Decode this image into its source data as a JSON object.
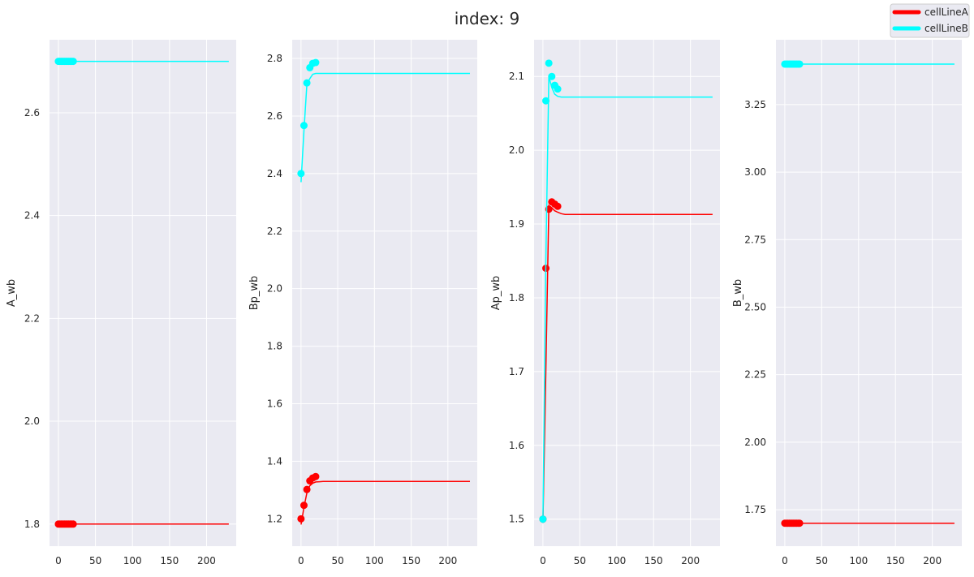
{
  "figure": {
    "title": "index: 9",
    "legend": [
      {
        "name": "cellLineA",
        "color": "#ff0000"
      },
      {
        "name": "cellLineB",
        "color": "#00ffff"
      }
    ],
    "legend_position": "top-right"
  },
  "chart_data": [
    {
      "type": "line",
      "ylabel": "A_wb",
      "xlim": [
        -12,
        240
      ],
      "ylim": [
        1.757,
        2.742
      ],
      "xticks": [
        0,
        50,
        100,
        150,
        200
      ],
      "yticks": [
        1.8,
        2.0,
        2.2,
        2.4,
        2.6
      ],
      "ytick_labels": [
        "1.8",
        "2.0",
        "2.2",
        "2.4",
        "2.6"
      ],
      "grid": true,
      "series": [
        {
          "name": "cellLineA",
          "color": "#ff0000",
          "line": {
            "x": [
              0,
              5,
              10,
              15,
              20,
              30,
              50,
              100,
              150,
              200,
              230
            ],
            "y": [
              1.8,
              1.8,
              1.8,
              1.8,
              1.8,
              1.8,
              1.8,
              1.8,
              1.8,
              1.8,
              1.8
            ]
          },
          "points": {
            "x": [
              0,
              2,
              4,
              6,
              8,
              10,
              12,
              14,
              16,
              18,
              20
            ],
            "y": [
              1.8,
              1.8,
              1.8,
              1.8,
              1.8,
              1.8,
              1.8,
              1.8,
              1.8,
              1.8,
              1.8
            ]
          }
        },
        {
          "name": "cellLineB",
          "color": "#00ffff",
          "line": {
            "x": [
              0,
              5,
              10,
              15,
              20,
              30,
              50,
              100,
              150,
              200,
              230
            ],
            "y": [
              2.7,
              2.7,
              2.7,
              2.7,
              2.7,
              2.7,
              2.7,
              2.7,
              2.7,
              2.7,
              2.7
            ]
          },
          "points": {
            "x": [
              0,
              2,
              4,
              6,
              8,
              10,
              12,
              14,
              16,
              18,
              20
            ],
            "y": [
              2.7,
              2.7,
              2.7,
              2.7,
              2.7,
              2.7,
              2.7,
              2.7,
              2.7,
              2.7,
              2.7
            ]
          }
        }
      ]
    },
    {
      "type": "line",
      "ylabel": "Bp_wb",
      "xlim": [
        -12,
        240
      ],
      "ylim": [
        1.105,
        2.865
      ],
      "xticks": [
        0,
        50,
        100,
        150,
        200
      ],
      "yticks": [
        1.2,
        1.4,
        1.6,
        1.8,
        2.0,
        2.2,
        2.4,
        2.6,
        2.8
      ],
      "ytick_labels": [
        "1.2",
        "1.4",
        "1.6",
        "1.8",
        "2.0",
        "2.2",
        "2.4",
        "2.6",
        "2.8"
      ],
      "grid": true,
      "series": [
        {
          "name": "cellLineA",
          "color": "#ff0000",
          "line": {
            "x": [
              0,
              4,
              8,
              12,
              16,
              20,
              25,
              30,
              50,
              100,
              150,
              200,
              230
            ],
            "y": [
              1.18,
              1.24,
              1.29,
              1.315,
              1.324,
              1.328,
              1.329,
              1.33,
              1.33,
              1.33,
              1.33,
              1.33,
              1.33
            ]
          },
          "points": {
            "x": [
              0,
              4,
              8,
              12,
              16,
              20
            ],
            "y": [
              1.2,
              1.247,
              1.302,
              1.332,
              1.342,
              1.347
            ]
          }
        },
        {
          "name": "cellLineB",
          "color": "#00ffff",
          "line": {
            "x": [
              0,
              4,
              8,
              12,
              16,
              20,
              25,
              30,
              50,
              100,
              150,
              200,
              230
            ],
            "y": [
              2.37,
              2.55,
              2.71,
              2.73,
              2.745,
              2.748,
              2.748,
              2.748,
              2.748,
              2.748,
              2.748,
              2.748,
              2.748
            ]
          },
          "points": {
            "x": [
              0,
              4,
              8,
              12,
              16,
              20
            ],
            "y": [
              2.4,
              2.567,
              2.715,
              2.768,
              2.783,
              2.786
            ]
          }
        }
      ]
    },
    {
      "type": "line",
      "ylabel": "Ap_wb",
      "xlim": [
        -12,
        240
      ],
      "ylim": [
        1.4634,
        2.1497
      ],
      "xticks": [
        0,
        50,
        100,
        150,
        200
      ],
      "yticks": [
        1.5,
        1.6,
        1.7,
        1.8,
        1.9,
        2.0,
        2.1
      ],
      "ytick_labels": [
        "1.5",
        "1.6",
        "1.7",
        "1.8",
        "1.9",
        "2.0",
        "2.1"
      ],
      "grid": true,
      "series": [
        {
          "name": "cellLineA",
          "color": "#ff0000",
          "line": {
            "x": [
              0,
              4,
              8,
              12,
              16,
              20,
              25,
              30,
              40,
              50,
              100,
              150,
              200,
              230
            ],
            "y": [
              1.495,
              1.7,
              1.925,
              1.922,
              1.918,
              1.916,
              1.914,
              1.913,
              1.913,
              1.913,
              1.913,
              1.913,
              1.913,
              1.913
            ]
          },
          "points": {
            "x": [
              0,
              4,
              8,
              12,
              16,
              20
            ],
            "y": [
              1.5,
              1.84,
              1.92,
              1.93,
              1.927,
              1.924
            ]
          }
        },
        {
          "name": "cellLineB",
          "color": "#00ffff",
          "line": {
            "x": [
              0,
              4,
              8,
              12,
              16,
              20,
              25,
              30,
              40,
              50,
              100,
              150,
              200,
              230
            ],
            "y": [
              1.495,
              1.85,
              2.1,
              2.085,
              2.076,
              2.073,
              2.072,
              2.072,
              2.072,
              2.072,
              2.072,
              2.072,
              2.072,
              2.072
            ]
          },
          "points": {
            "x": [
              0,
              4,
              8,
              12,
              16,
              20
            ],
            "y": [
              1.5,
              2.067,
              2.118,
              2.1,
              2.088,
              2.083
            ]
          }
        }
      ]
    },
    {
      "type": "line",
      "ylabel": "B_wb",
      "xlim": [
        -12,
        240
      ],
      "ylim": [
        1.615,
        3.49
      ],
      "xticks": [
        0,
        50,
        100,
        150,
        200
      ],
      "yticks": [
        1.75,
        2.0,
        2.25,
        2.5,
        2.75,
        3.0,
        3.25
      ],
      "ytick_labels": [
        "1.75",
        "2.00",
        "2.25",
        "2.50",
        "2.75",
        "3.00",
        "3.25"
      ],
      "grid": true,
      "series": [
        {
          "name": "cellLineA",
          "color": "#ff0000",
          "line": {
            "x": [
              0,
              5,
              10,
              15,
              20,
              30,
              50,
              100,
              150,
              200,
              230
            ],
            "y": [
              1.7,
              1.7,
              1.7,
              1.7,
              1.7,
              1.7,
              1.7,
              1.7,
              1.7,
              1.7,
              1.7
            ]
          },
          "points": {
            "x": [
              0,
              2,
              4,
              6,
              8,
              10,
              12,
              14,
              16,
              18,
              20
            ],
            "y": [
              1.7,
              1.7,
              1.7,
              1.7,
              1.7,
              1.7,
              1.7,
              1.7,
              1.7,
              1.7,
              1.7
            ]
          }
        },
        {
          "name": "cellLineB",
          "color": "#00ffff",
          "line": {
            "x": [
              0,
              5,
              10,
              15,
              20,
              30,
              50,
              100,
              150,
              200,
              230
            ],
            "y": [
              3.4,
              3.4,
              3.4,
              3.4,
              3.4,
              3.4,
              3.4,
              3.4,
              3.4,
              3.4,
              3.4
            ]
          },
          "points": {
            "x": [
              0,
              2,
              4,
              6,
              8,
              10,
              12,
              14,
              16,
              18,
              20
            ],
            "y": [
              3.4,
              3.4,
              3.4,
              3.4,
              3.4,
              3.4,
              3.4,
              3.4,
              3.4,
              3.4,
              3.4
            ]
          }
        }
      ]
    }
  ]
}
